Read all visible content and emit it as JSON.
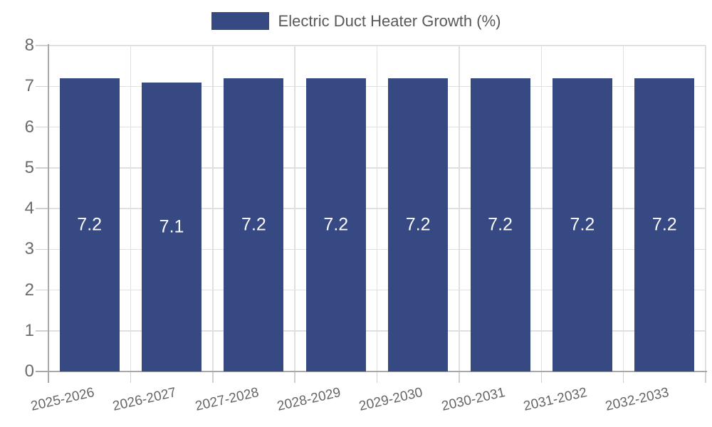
{
  "chart_data": {
    "type": "bar",
    "title": "",
    "series_name": "Electric Duct Heater Growth (%)",
    "categories": [
      "2025-2026",
      "2026-2027",
      "2027-2028",
      "2028-2029",
      "2029-2030",
      "2030-2031",
      "2031-2032",
      "2032-2033"
    ],
    "values": [
      7.2,
      7.1,
      7.2,
      7.2,
      7.2,
      7.2,
      7.2,
      7.2
    ],
    "bar_value_labels": [
      "7.2",
      "7.1",
      "7.2",
      "7.2",
      "7.2",
      "7.2",
      "7.2",
      "7.2"
    ],
    "xlabel": "",
    "ylabel": "",
    "ylim": [
      0,
      8
    ],
    "yticks": [
      0,
      1,
      2,
      3,
      4,
      5,
      6,
      7,
      8
    ],
    "grid": true,
    "legend_position": "top-center",
    "colors": {
      "bar": "#364983",
      "bar_label": "#fafafa",
      "grid": "#e0e0e0",
      "tick": "#d0d0d0",
      "axis": "#a8a8a8",
      "axis_text": "#6b6b6b",
      "xaxis_text": "#666666",
      "legend_text": "#58595b",
      "background": "#ffffff"
    }
  }
}
